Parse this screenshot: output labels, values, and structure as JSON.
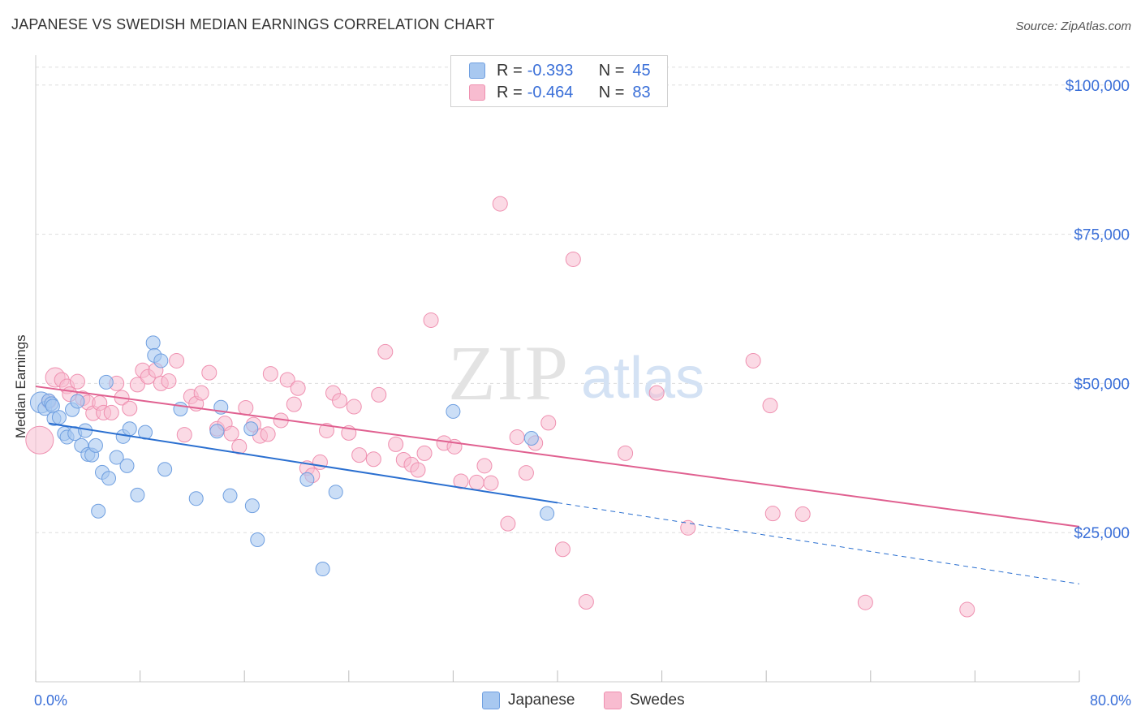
{
  "title": "JAPANESE VS SWEDISH MEDIAN EARNINGS CORRELATION CHART",
  "source": "Source: ZipAtlas.com",
  "watermark": {
    "zip": "ZIP",
    "atlas": "atlas"
  },
  "colors": {
    "japanese_fill": "#a8c8f0",
    "japanese_stroke": "#6f9fe0",
    "japanese_line": "#2a6fd0",
    "swedes_fill": "#f8bcd0",
    "swedes_stroke": "#ef90b0",
    "swedes_line": "#e06090",
    "axis_label": "#3a6fd8",
    "grid": "#dddddd"
  },
  "legend": {
    "rows": [
      {
        "series": "Japanese",
        "r_label": "R =",
        "r_value": "-0.393",
        "n_label": "N =",
        "n_value": "45"
      },
      {
        "series": "Swedes",
        "r_label": "R =",
        "r_value": "-0.464",
        "n_label": "N =",
        "n_value": "83"
      }
    ]
  },
  "bottom_legend": [
    "Japanese",
    "Swedes"
  ],
  "chart_data": {
    "type": "scatter",
    "title": "JAPANESE VS SWEDISH MEDIAN EARNINGS CORRELATION CHART",
    "xlabel": "",
    "ylabel": "Median Earnings",
    "xlim": [
      0,
      80
    ],
    "ylim": [
      0,
      105000
    ],
    "x_tick_labels": [
      "0.0%",
      "80.0%"
    ],
    "y_ticks": [
      25000,
      50000,
      75000,
      100000
    ],
    "y_tick_labels": [
      "$25,000",
      "$50,000",
      "$75,000",
      "$100,000"
    ],
    "grid": true,
    "legend_placement": "top-center",
    "series": [
      {
        "name": "Japanese",
        "r": -0.393,
        "n": 45,
        "trend": {
          "x0": 1.0,
          "y0": 43300,
          "x1": 40.0,
          "y1": 30000,
          "dash_to_x": 80.0,
          "dash_to_y": 16400
        },
        "points": [
          [
            0.4,
            46800
          ],
          [
            0.7,
            45800
          ],
          [
            1.0,
            47100
          ],
          [
            1.2,
            46600
          ],
          [
            1.3,
            46200
          ],
          [
            1.4,
            44100
          ],
          [
            1.8,
            44300
          ],
          [
            2.2,
            41600
          ],
          [
            2.4,
            41000
          ],
          [
            2.8,
            45600
          ],
          [
            3.0,
            41600
          ],
          [
            3.2,
            47000
          ],
          [
            3.5,
            39600
          ],
          [
            3.8,
            42100
          ],
          [
            4.0,
            38100
          ],
          [
            4.3,
            38000
          ],
          [
            4.6,
            39600
          ],
          [
            4.8,
            28600
          ],
          [
            5.1,
            35100
          ],
          [
            5.4,
            50200
          ],
          [
            5.6,
            34100
          ],
          [
            6.2,
            37600
          ],
          [
            6.7,
            41100
          ],
          [
            7.0,
            36200
          ],
          [
            7.2,
            42400
          ],
          [
            7.8,
            31300
          ],
          [
            8.4,
            41800
          ],
          [
            9.0,
            56800
          ],
          [
            9.1,
            54700
          ],
          [
            9.6,
            53800
          ],
          [
            9.9,
            35600
          ],
          [
            11.1,
            45700
          ],
          [
            12.3,
            30700
          ],
          [
            13.9,
            42000
          ],
          [
            14.2,
            46000
          ],
          [
            14.9,
            31200
          ],
          [
            16.5,
            42400
          ],
          [
            16.6,
            29500
          ],
          [
            17.0,
            23800
          ],
          [
            20.8,
            33900
          ],
          [
            22.0,
            18900
          ],
          [
            23.0,
            31800
          ],
          [
            32.0,
            45300
          ],
          [
            38.0,
            40800
          ],
          [
            39.2,
            28200
          ]
        ]
      },
      {
        "name": "Swedes",
        "r": -0.464,
        "n": 83,
        "trend": {
          "x0": 0.0,
          "y0": 49500,
          "x1": 80.0,
          "y1": 26000
        },
        "points": [
          [
            0.3,
            40500
          ],
          [
            1.0,
            47000
          ],
          [
            1.5,
            51000
          ],
          [
            2.0,
            50600
          ],
          [
            2.4,
            49500
          ],
          [
            2.6,
            48200
          ],
          [
            3.2,
            50300
          ],
          [
            3.6,
            47500
          ],
          [
            4.0,
            46800
          ],
          [
            4.4,
            45000
          ],
          [
            4.9,
            46700
          ],
          [
            5.2,
            45100
          ],
          [
            5.8,
            45100
          ],
          [
            6.2,
            50000
          ],
          [
            6.6,
            47600
          ],
          [
            7.2,
            45800
          ],
          [
            7.8,
            49800
          ],
          [
            8.2,
            52200
          ],
          [
            8.6,
            51100
          ],
          [
            9.2,
            52200
          ],
          [
            9.6,
            50000
          ],
          [
            10.2,
            50400
          ],
          [
            10.8,
            53800
          ],
          [
            11.4,
            41400
          ],
          [
            11.9,
            47800
          ],
          [
            12.3,
            46600
          ],
          [
            12.7,
            48400
          ],
          [
            13.3,
            51800
          ],
          [
            13.9,
            42400
          ],
          [
            14.5,
            43300
          ],
          [
            15.0,
            41600
          ],
          [
            15.6,
            39400
          ],
          [
            16.1,
            45900
          ],
          [
            16.7,
            43100
          ],
          [
            17.2,
            41200
          ],
          [
            17.8,
            41500
          ],
          [
            18.0,
            51600
          ],
          [
            18.8,
            43800
          ],
          [
            19.3,
            50600
          ],
          [
            19.8,
            46500
          ],
          [
            20.1,
            49200
          ],
          [
            20.8,
            35800
          ],
          [
            21.2,
            34600
          ],
          [
            21.8,
            36800
          ],
          [
            22.3,
            42100
          ],
          [
            22.8,
            48400
          ],
          [
            23.3,
            47100
          ],
          [
            24.0,
            41700
          ],
          [
            24.4,
            46100
          ],
          [
            24.8,
            38000
          ],
          [
            25.9,
            37300
          ],
          [
            26.3,
            48100
          ],
          [
            26.8,
            55300
          ],
          [
            27.6,
            39800
          ],
          [
            28.2,
            37200
          ],
          [
            28.8,
            36400
          ],
          [
            29.3,
            35500
          ],
          [
            29.8,
            38300
          ],
          [
            30.3,
            60600
          ],
          [
            31.3,
            40000
          ],
          [
            32.1,
            39400
          ],
          [
            32.6,
            33600
          ],
          [
            33.8,
            33400
          ],
          [
            34.4,
            36200
          ],
          [
            34.9,
            33300
          ],
          [
            35.6,
            80100
          ],
          [
            36.2,
            26500
          ],
          [
            36.9,
            41000
          ],
          [
            37.6,
            35000
          ],
          [
            38.3,
            40000
          ],
          [
            39.3,
            43400
          ],
          [
            40.4,
            22200
          ],
          [
            41.2,
            70800
          ],
          [
            42.2,
            13400
          ],
          [
            45.2,
            38300
          ],
          [
            47.6,
            48400
          ],
          [
            50.0,
            25800
          ],
          [
            55.0,
            53800
          ],
          [
            56.3,
            46300
          ],
          [
            56.5,
            28200
          ],
          [
            58.8,
            28100
          ],
          [
            63.6,
            13300
          ],
          [
            71.4,
            12100
          ]
        ]
      }
    ]
  }
}
